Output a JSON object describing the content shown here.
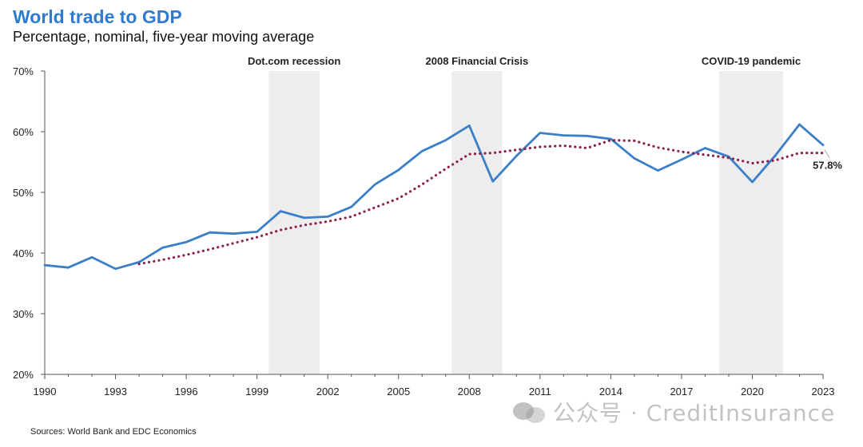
{
  "chart_data": {
    "type": "line",
    "title": "World trade to GDP",
    "subtitle": "Percentage, nominal, five-year moving average",
    "x": [
      1990,
      1991,
      1992,
      1993,
      1994,
      1995,
      1996,
      1997,
      1998,
      1999,
      2000,
      2001,
      2002,
      2003,
      2004,
      2005,
      2006,
      2007,
      2008,
      2009,
      2010,
      2011,
      2012,
      2013,
      2014,
      2015,
      2016,
      2017,
      2018,
      2019,
      2020,
      2021,
      2022,
      2023
    ],
    "xlim": [
      1990,
      2023
    ],
    "ylim": [
      20,
      70
    ],
    "x_ticks": [
      "1990",
      "1993",
      "1996",
      "1999",
      "2002",
      "2005",
      "2008",
      "2011",
      "2014",
      "2017",
      "2020",
      "2023"
    ],
    "y_ticks": [
      "20%",
      "30%",
      "40%",
      "50%",
      "60%",
      "70%"
    ],
    "grid": false,
    "series": [
      {
        "style": "solid",
        "color": "#3a7fc8",
        "values": [
          38.0,
          37.6,
          39.3,
          37.4,
          38.5,
          40.9,
          41.8,
          43.4,
          43.2,
          43.5,
          46.9,
          45.8,
          46.0,
          47.6,
          51.3,
          53.7,
          56.8,
          58.6,
          61.0,
          51.8,
          56.0,
          59.8,
          59.4,
          59.3,
          58.8,
          55.6,
          53.6,
          55.4,
          57.3,
          55.9,
          51.7,
          56.2,
          61.2,
          57.8
        ]
      },
      {
        "style": "dotted",
        "color": "#8b2252",
        "values": [
          null,
          null,
          null,
          null,
          38.2,
          38.9,
          39.7,
          40.6,
          41.6,
          42.6,
          43.8,
          44.6,
          45.2,
          46.0,
          47.5,
          49.0,
          51.3,
          53.9,
          56.3,
          56.5,
          57.0,
          57.5,
          57.7,
          57.3,
          58.6,
          58.5,
          57.4,
          56.7,
          56.2,
          55.7,
          54.8,
          55.3,
          56.5,
          56.5
        ]
      }
    ],
    "shaded_periods": [
      {
        "label": "Dot.com recession",
        "start": 1999.5,
        "end": 2001.65
      },
      {
        "label": "2008 Financial Crisis",
        "start": 2007.25,
        "end": 2009.4
      },
      {
        "label": "COVID-19 pandemic",
        "start": 2018.6,
        "end": 2021.3
      }
    ],
    "end_label": "57.8%"
  },
  "sources": "Sources: World Bank and EDC Economics",
  "watermark": "公众号 · CreditInsurance",
  "colors": {
    "title": "#2f7bd1",
    "shade": "#ededed",
    "axis": "#555555"
  }
}
